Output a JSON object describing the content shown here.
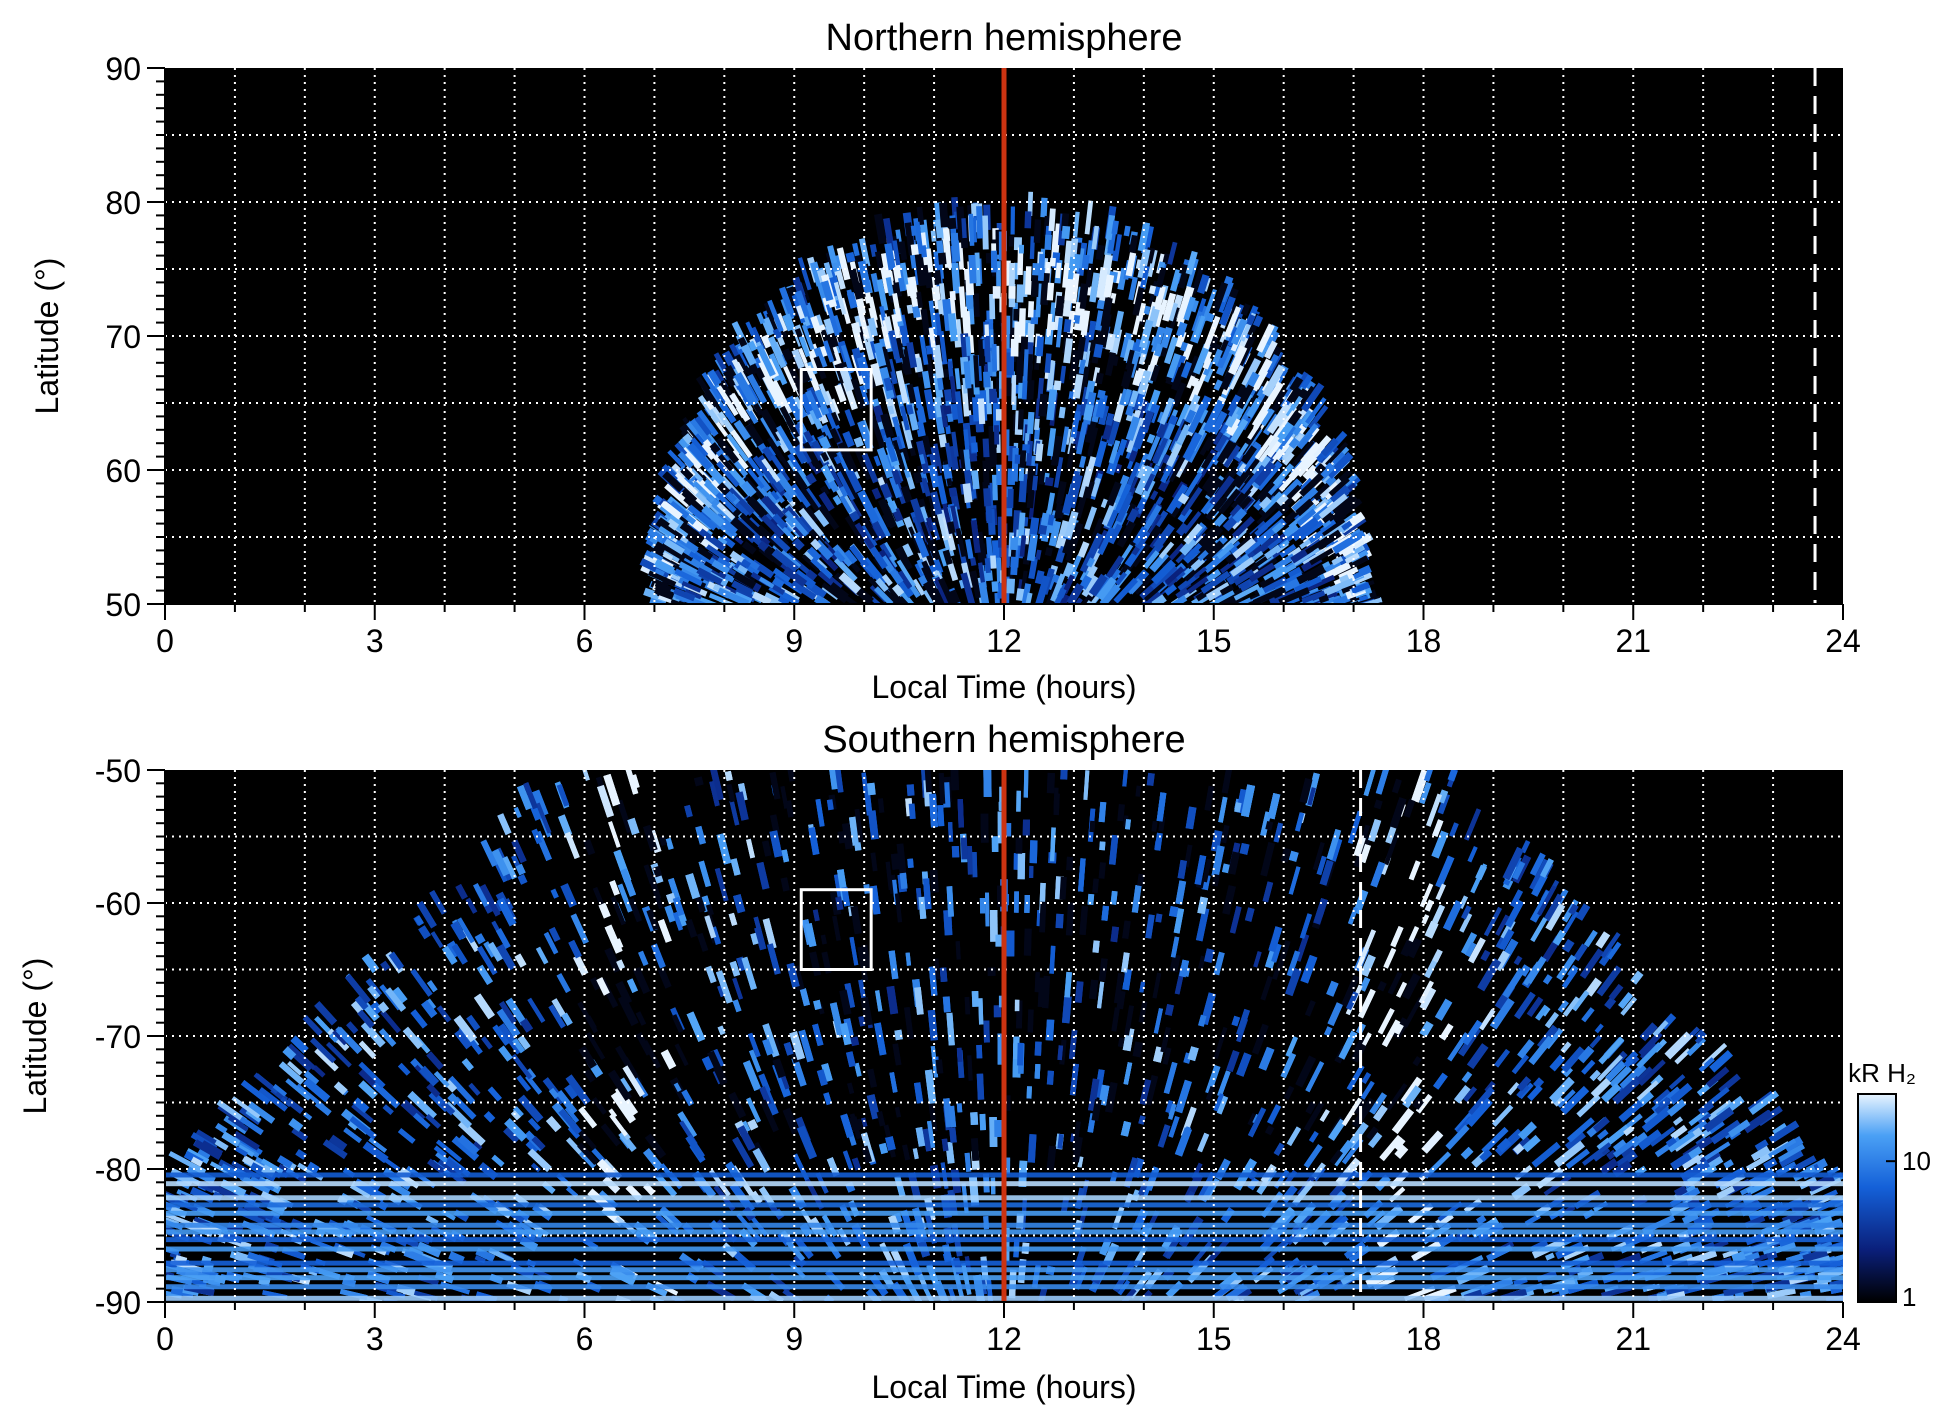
{
  "figure": {
    "colorbar": {
      "label": "kR H₂",
      "ticks": [
        {
          "value": 1,
          "label": "1"
        },
        {
          "value": 10,
          "label": "10"
        }
      ],
      "range": [
        1,
        30
      ],
      "scale": "log",
      "colors": [
        "#000000",
        "#0a1f7a",
        "#1460d8",
        "#4aa0f5",
        "#e8f4ff"
      ]
    },
    "reference_line_color": "#cc3311",
    "box_color": "#ffffff"
  },
  "chart_data": [
    {
      "type": "heatmap",
      "title": "Northern hemisphere",
      "xlabel": "Local Time (hours)",
      "ylabel": "Latitude (°)",
      "xlim": [
        0,
        24
      ],
      "ylim": [
        50,
        90
      ],
      "xticks": [
        0,
        3,
        6,
        9,
        12,
        15,
        18,
        21,
        24
      ],
      "yticks": [
        50,
        60,
        70,
        80,
        90
      ],
      "grid": true,
      "reference_line_lt": 12,
      "dashed_line_lt": 23.6,
      "box": {
        "lt": [
          9.1,
          10.1
        ],
        "lat": [
          61.5,
          67.5
        ]
      },
      "emission_region": {
        "lt_range": [
          7.0,
          17.2
        ],
        "lat_max": 80,
        "oval_lat": [
          63,
          75
        ]
      }
    },
    {
      "type": "heatmap",
      "title": "Southern hemisphere",
      "xlabel": "Local Time (hours)",
      "ylabel": "Latitude (°)",
      "xlim": [
        0,
        24
      ],
      "ylim": [
        -90,
        -50
      ],
      "xticks": [
        0,
        3,
        6,
        9,
        12,
        15,
        18,
        21,
        24
      ],
      "yticks": [
        -90,
        -80,
        -70,
        -60,
        -50
      ],
      "grid": true,
      "reference_line_lt": 12,
      "dashed_line_lt": 17.1,
      "box": {
        "lt": [
          9.1,
          10.1
        ],
        "lat": [
          -65,
          -59
        ]
      },
      "emission_region": {
        "lt_range": [
          0,
          24
        ],
        "lat_max": -50,
        "oval_lt": [
          6.5,
          17.8
        ]
      }
    }
  ]
}
